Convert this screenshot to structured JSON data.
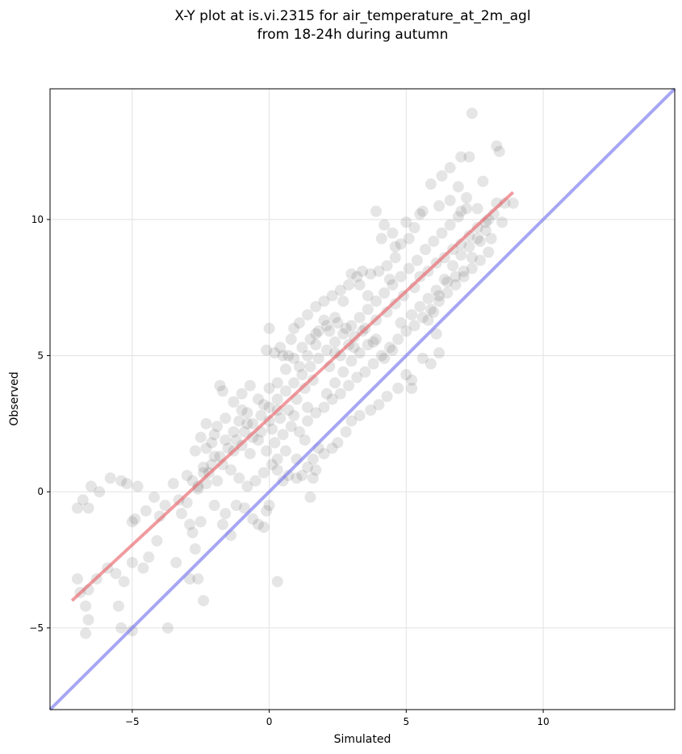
{
  "chart_data": {
    "type": "scatter",
    "title_line1": "X-Y plot at is.vi.2315 for air_temperature_at_2m_agl",
    "title_line2": "from 18-24h during autumn",
    "xlabel": "Simulated",
    "ylabel": "Observed",
    "xlim": [
      -8.0,
      14.8
    ],
    "ylim": [
      -8.0,
      14.8
    ],
    "xticks": [
      -5,
      0,
      5,
      10
    ],
    "yticks": [
      -5,
      0,
      5,
      10
    ],
    "xtick_labels": [
      "−5",
      "0",
      "5",
      "10"
    ],
    "ytick_labels": [
      "−5",
      "0",
      "5",
      "10"
    ],
    "grid": true,
    "point_color": "#333333",
    "fit_color": "#e8666b",
    "identity_color": "#7777ee",
    "fit_line": {
      "x": [
        -7.2,
        8.9
      ],
      "y": [
        -4.0,
        11.0
      ]
    },
    "identity_line": {
      "x": [
        -8.0,
        14.8
      ],
      "y": [
        -8.0,
        14.8
      ]
    },
    "points": [
      [
        -7.0,
        -0.6
      ],
      [
        -6.8,
        -0.3
      ],
      [
        -6.6,
        -0.6
      ],
      [
        -6.5,
        0.2
      ],
      [
        -6.2,
        0.0
      ],
      [
        -5.8,
        0.5
      ],
      [
        -5.4,
        0.4
      ],
      [
        -5.2,
        0.3
      ],
      [
        -4.8,
        0.2
      ],
      [
        -4.9,
        -1.0
      ],
      [
        -5.0,
        -1.1
      ],
      [
        -4.5,
        -0.7
      ],
      [
        -4.2,
        -0.2
      ],
      [
        -4.0,
        -0.9
      ],
      [
        -3.8,
        -0.5
      ],
      [
        -4.1,
        -1.8
      ],
      [
        -4.4,
        -2.4
      ],
      [
        -4.6,
        -2.8
      ],
      [
        -5.0,
        -2.6
      ],
      [
        -5.3,
        -3.3
      ],
      [
        -5.6,
        -3.0
      ],
      [
        -5.9,
        -2.8
      ],
      [
        -6.3,
        -3.2
      ],
      [
        -6.6,
        -3.6
      ],
      [
        -6.9,
        -3.7
      ],
      [
        -7.0,
        -3.2
      ],
      [
        -6.7,
        -4.2
      ],
      [
        -6.6,
        -4.7
      ],
      [
        -6.7,
        -5.2
      ],
      [
        -5.5,
        -4.2
      ],
      [
        -5.4,
        -5.0
      ],
      [
        -5.0,
        -5.1
      ],
      [
        -3.7,
        -5.0
      ],
      [
        -3.4,
        -2.6
      ],
      [
        -2.9,
        -3.2
      ],
      [
        -2.6,
        -3.2
      ],
      [
        -2.4,
        -4.0
      ],
      [
        -2.7,
        -2.1
      ],
      [
        -2.8,
        -1.5
      ],
      [
        -2.5,
        -1.1
      ],
      [
        -2.9,
        -1.2
      ],
      [
        -3.2,
        -0.8
      ],
      [
        -3.3,
        -0.3
      ],
      [
        -3.5,
        0.3
      ],
      [
        -3.0,
        0.6
      ],
      [
        -2.6,
        0.2
      ],
      [
        -2.3,
        0.3
      ],
      [
        -2.0,
        -0.5
      ],
      [
        -1.7,
        -1.2
      ],
      [
        -1.4,
        -1.6
      ],
      [
        -1.6,
        -0.8
      ],
      [
        -1.2,
        -0.5
      ],
      [
        -0.9,
        -0.6
      ],
      [
        -0.6,
        -1.0
      ],
      [
        -0.4,
        -1.2
      ],
      [
        -0.2,
        -1.3
      ],
      [
        -0.1,
        -0.7
      ],
      [
        0.0,
        -0.5
      ],
      [
        0.3,
        -3.3
      ],
      [
        -1.8,
        3.9
      ],
      [
        -1.7,
        3.7
      ],
      [
        -1.3,
        3.3
      ],
      [
        -1.0,
        3.0
      ],
      [
        -0.8,
        2.5
      ],
      [
        -0.6,
        2.0
      ],
      [
        -0.3,
        2.2
      ],
      [
        0.0,
        2.6
      ],
      [
        0.2,
        5.1
      ],
      [
        0.0,
        6.0
      ],
      [
        -0.1,
        5.2
      ],
      [
        0.4,
        5.3
      ],
      [
        0.7,
        5.0
      ],
      [
        0.9,
        6.0
      ],
      [
        1.1,
        6.2
      ],
      [
        1.4,
        6.5
      ],
      [
        1.7,
        6.8
      ],
      [
        2.0,
        7.0
      ],
      [
        2.3,
        7.2
      ],
      [
        2.6,
        7.4
      ],
      [
        2.9,
        7.6
      ],
      [
        3.2,
        7.9
      ],
      [
        3.4,
        8.1
      ],
      [
        3.7,
        8.0
      ],
      [
        4.0,
        8.1
      ],
      [
        4.3,
        8.3
      ],
      [
        4.6,
        8.6
      ],
      [
        4.8,
        9.1
      ],
      [
        5.1,
        9.3
      ],
      [
        4.5,
        9.5
      ],
      [
        5.0,
        9.9
      ],
      [
        5.6,
        10.3
      ],
      [
        5.9,
        11.3
      ],
      [
        6.3,
        11.6
      ],
      [
        6.6,
        11.9
      ],
      [
        7.0,
        12.3
      ],
      [
        7.3,
        12.3
      ],
      [
        7.4,
        13.9
      ],
      [
        8.3,
        12.7
      ],
      [
        8.4,
        12.5
      ],
      [
        7.8,
        11.4
      ],
      [
        6.9,
        11.2
      ],
      [
        7.2,
        10.8
      ],
      [
        7.6,
        10.4
      ],
      [
        8.0,
        10.0
      ],
      [
        8.3,
        10.6
      ],
      [
        8.6,
        10.6
      ],
      [
        8.9,
        10.6
      ],
      [
        8.5,
        9.9
      ],
      [
        8.1,
        9.3
      ],
      [
        7.7,
        9.2
      ],
      [
        7.4,
        8.6
      ],
      [
        7.1,
        8.1
      ],
      [
        6.8,
        7.9
      ],
      [
        6.5,
        7.7
      ],
      [
        6.2,
        7.2
      ],
      [
        6.0,
        6.6
      ],
      [
        5.8,
        6.3
      ],
      [
        6.1,
        5.8
      ],
      [
        6.2,
        5.1
      ],
      [
        5.9,
        4.7
      ],
      [
        5.6,
        4.9
      ],
      [
        5.2,
        4.1
      ],
      [
        5.0,
        4.3
      ],
      [
        4.7,
        3.8
      ],
      [
        5.2,
        3.8
      ],
      [
        4.3,
        3.5
      ],
      [
        4.0,
        3.2
      ],
      [
        3.7,
        3.0
      ],
      [
        3.3,
        2.8
      ],
      [
        3.0,
        2.6
      ],
      [
        2.8,
        2.2
      ],
      [
        2.5,
        1.8
      ],
      [
        2.3,
        1.6
      ],
      [
        2.0,
        1.4
      ],
      [
        1.8,
        1.6
      ],
      [
        1.6,
        1.2
      ],
      [
        1.4,
        0.9
      ],
      [
        1.2,
        0.6
      ],
      [
        1.0,
        0.5
      ],
      [
        1.7,
        0.8
      ],
      [
        1.6,
        0.5
      ],
      [
        1.5,
        -0.2
      ],
      [
        0.7,
        0.6
      ],
      [
        0.5,
        0.4
      ],
      [
        0.3,
        0.8
      ],
      [
        0.1,
        1.0
      ],
      [
        -0.2,
        0.7
      ],
      [
        -0.5,
        0.4
      ],
      [
        -0.8,
        0.2
      ],
      [
        -1.1,
        0.5
      ],
      [
        -1.4,
        0.8
      ],
      [
        -1.7,
        1.0
      ],
      [
        -2.0,
        1.3
      ],
      [
        -2.3,
        1.6
      ],
      [
        -2.5,
        2.0
      ],
      [
        -2.7,
        1.5
      ],
      [
        -2.2,
        0.7
      ],
      [
        -1.9,
        0.4
      ],
      [
        -2.4,
        0.9
      ],
      [
        -2.8,
        0.4
      ],
      [
        -2.3,
        2.5
      ],
      [
        -2.0,
        2.1
      ],
      [
        -1.6,
        2.7
      ],
      [
        -1.3,
        2.2
      ],
      [
        -1.0,
        1.7
      ],
      [
        -0.7,
        1.4
      ],
      [
        -0.4,
        1.9
      ],
      [
        -0.1,
        1.5
      ],
      [
        0.2,
        1.8
      ],
      [
        0.5,
        2.1
      ],
      [
        0.8,
        2.4
      ],
      [
        1.1,
        2.2
      ],
      [
        1.4,
        2.6
      ],
      [
        1.7,
        2.9
      ],
      [
        2.0,
        3.1
      ],
      [
        2.3,
        3.4
      ],
      [
        2.6,
        3.6
      ],
      [
        2.9,
        3.9
      ],
      [
        3.2,
        4.2
      ],
      [
        3.5,
        4.4
      ],
      [
        3.8,
        4.7
      ],
      [
        4.1,
        5.0
      ],
      [
        4.4,
        5.3
      ],
      [
        4.7,
        5.6
      ],
      [
        5.0,
        5.9
      ],
      [
        5.3,
        6.1
      ],
      [
        5.6,
        6.4
      ],
      [
        5.9,
        6.7
      ],
      [
        6.2,
        7.0
      ],
      [
        6.5,
        7.3
      ],
      [
        6.8,
        7.6
      ],
      [
        7.1,
        7.9
      ],
      [
        7.4,
        8.2
      ],
      [
        7.7,
        8.5
      ],
      [
        8.0,
        8.8
      ],
      [
        5.7,
        8.9
      ],
      [
        6.0,
        9.2
      ],
      [
        6.3,
        9.5
      ],
      [
        6.6,
        9.8
      ],
      [
        6.9,
        10.1
      ],
      [
        7.2,
        10.4
      ],
      [
        5.4,
        8.5
      ],
      [
        5.1,
        8.2
      ],
      [
        4.8,
        7.9
      ],
      [
        4.5,
        7.6
      ],
      [
        4.2,
        7.3
      ],
      [
        3.9,
        7.0
      ],
      [
        3.6,
        6.7
      ],
      [
        3.3,
        6.4
      ],
      [
        3.0,
        6.1
      ],
      [
        2.7,
        5.8
      ],
      [
        2.4,
        5.5
      ],
      [
        2.1,
        5.2
      ],
      [
        1.8,
        4.9
      ],
      [
        1.5,
        4.6
      ],
      [
        1.2,
        4.3
      ],
      [
        0.9,
        4.0
      ],
      [
        0.6,
        3.7
      ],
      [
        0.3,
        3.4
      ],
      [
        0.0,
        3.1
      ],
      [
        -0.3,
        2.8
      ],
      [
        -0.6,
        2.5
      ],
      [
        -0.9,
        2.2
      ],
      [
        -1.2,
        1.9
      ],
      [
        -1.5,
        1.6
      ],
      [
        -1.8,
        1.3
      ],
      [
        -2.1,
        1.0
      ],
      [
        -2.4,
        0.7
      ],
      [
        -2.6,
        0.1
      ],
      [
        -3.0,
        -0.4
      ],
      [
        2.2,
        5.9
      ],
      [
        2.5,
        6.2
      ],
      [
        2.8,
        6.0
      ],
      [
        3.1,
        5.7
      ],
      [
        2.0,
        6.3
      ],
      [
        1.7,
        5.8
      ],
      [
        2.4,
        5.1
      ],
      [
        2.9,
        5.4
      ],
      [
        3.4,
        5.9
      ],
      [
        3.8,
        5.5
      ],
      [
        3.9,
        6.3
      ],
      [
        4.3,
        6.6
      ],
      [
        4.6,
        6.9
      ],
      [
        4.9,
        7.2
      ],
      [
        5.3,
        7.5
      ],
      [
        5.5,
        7.9
      ],
      [
        5.8,
        8.1
      ],
      [
        6.1,
        8.4
      ],
      [
        6.4,
        8.6
      ],
      [
        6.7,
        8.9
      ],
      [
        7.0,
        9.1
      ],
      [
        7.3,
        9.4
      ],
      [
        7.6,
        9.7
      ],
      [
        7.9,
        9.9
      ],
      [
        8.2,
        10.2
      ],
      [
        1.0,
        3.4
      ],
      [
        1.3,
        3.8
      ],
      [
        1.6,
        4.1
      ],
      [
        0.7,
        3.0
      ],
      [
        0.4,
        2.7
      ],
      [
        0.1,
        2.3
      ],
      [
        -0.2,
        3.2
      ],
      [
        0.3,
        4.0
      ],
      [
        0.6,
        4.5
      ],
      [
        0.9,
        4.9
      ],
      [
        1.2,
        5.3
      ],
      [
        1.5,
        5.6
      ],
      [
        1.8,
        5.9
      ],
      [
        2.1,
        6.1
      ],
      [
        2.4,
        6.4
      ],
      [
        3.6,
        5.4
      ],
      [
        3.9,
        5.6
      ],
      [
        4.2,
        4.9
      ],
      [
        4.5,
        5.2
      ],
      [
        4.8,
        6.2
      ],
      [
        5.2,
        6.5
      ],
      [
        5.5,
        6.8
      ],
      [
        5.8,
        7.1
      ],
      [
        6.1,
        7.4
      ],
      [
        6.4,
        7.8
      ],
      [
        6.7,
        8.3
      ],
      [
        7.0,
        8.7
      ],
      [
        7.3,
        9.0
      ],
      [
        7.6,
        9.3
      ],
      [
        7.9,
        9.6
      ],
      [
        3.0,
        8.0
      ],
      [
        3.3,
        7.6
      ],
      [
        2.7,
        7.0
      ],
      [
        3.6,
        7.2
      ],
      [
        4.4,
        7.8
      ],
      [
        4.1,
        9.3
      ],
      [
        4.6,
        9.0
      ],
      [
        5.3,
        9.7
      ],
      [
        5.5,
        10.2
      ],
      [
        6.2,
        10.5
      ],
      [
        6.6,
        10.7
      ],
      [
        7.0,
        10.3
      ],
      [
        3.9,
        10.3
      ],
      [
        4.2,
        9.8
      ],
      [
        -1.0,
        3.6
      ],
      [
        -0.7,
        3.9
      ],
      [
        -0.4,
        3.4
      ],
      [
        -0.8,
        2.9
      ],
      [
        -1.1,
        2.6
      ],
      [
        0.0,
        3.8
      ],
      [
        0.3,
        3.0
      ],
      [
        -1.9,
        2.4
      ],
      [
        -1.6,
        1.9
      ],
      [
        -1.3,
        1.5
      ],
      [
        -2.1,
        1.8
      ],
      [
        1.0,
        1.2
      ],
      [
        1.3,
        1.9
      ],
      [
        0.6,
        1.5
      ],
      [
        0.3,
        1.2
      ],
      [
        0.9,
        2.8
      ],
      [
        1.4,
        3.1
      ],
      [
        2.1,
        3.6
      ],
      [
        2.4,
        4.0
      ],
      [
        2.7,
        4.4
      ],
      [
        3.0,
        4.8
      ],
      [
        3.3,
        5.1
      ],
      [
        1.1,
        4.6
      ],
      [
        1.4,
        5.0
      ],
      [
        1.7,
        5.4
      ],
      [
        0.8,
        5.6
      ],
      [
        0.5,
        5.0
      ],
      [
        2.2,
        4.6
      ],
      [
        2.6,
        5.0
      ],
      [
        3.1,
        5.3
      ],
      [
        3.5,
        6.0
      ]
    ]
  }
}
